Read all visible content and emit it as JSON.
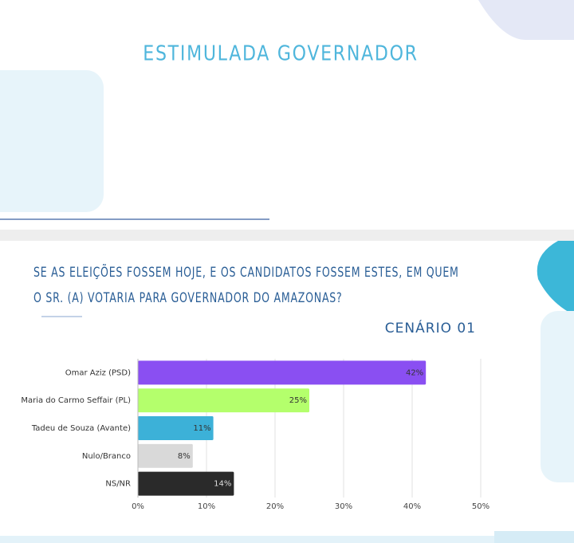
{
  "header": {
    "title": "ESTIMULADA GOVERNADOR"
  },
  "chart_data": {
    "type": "hbar",
    "title": "SE AS ELEIÇÕES FOSSEM HOJE, E OS CANDIDATOS FOSSEM ESTES, EM QUEM O SR. (A) VOTARIA PARA GOVERNADOR DO AMAZONAS?",
    "subtitle": "CENÁRIO 01",
    "categories": [
      "Omar Aziz (PSD)",
      "Maria do Carmo Seffair (PL)",
      "Tadeu de Souza (Avante)",
      "Nulo/Branco",
      "NS/NR"
    ],
    "values": [
      42,
      25,
      11,
      8,
      14
    ],
    "value_labels": [
      "42%",
      "25%",
      "11%",
      "8%",
      "14%"
    ],
    "colors": [
      "#8a4ff2",
      "#b4ff6c",
      "#3cb1d8",
      "#d9d9d9",
      "#2a2a2a"
    ],
    "xlim": [
      0,
      50
    ],
    "xticks": [
      {
        "value": 0,
        "label": "0%"
      },
      {
        "value": 10,
        "label": "10%"
      },
      {
        "value": 20,
        "label": "20%"
      },
      {
        "value": 30,
        "label": "30%"
      },
      {
        "value": 40,
        "label": "40%"
      },
      {
        "value": 50,
        "label": "50%"
      }
    ],
    "grid": true
  }
}
